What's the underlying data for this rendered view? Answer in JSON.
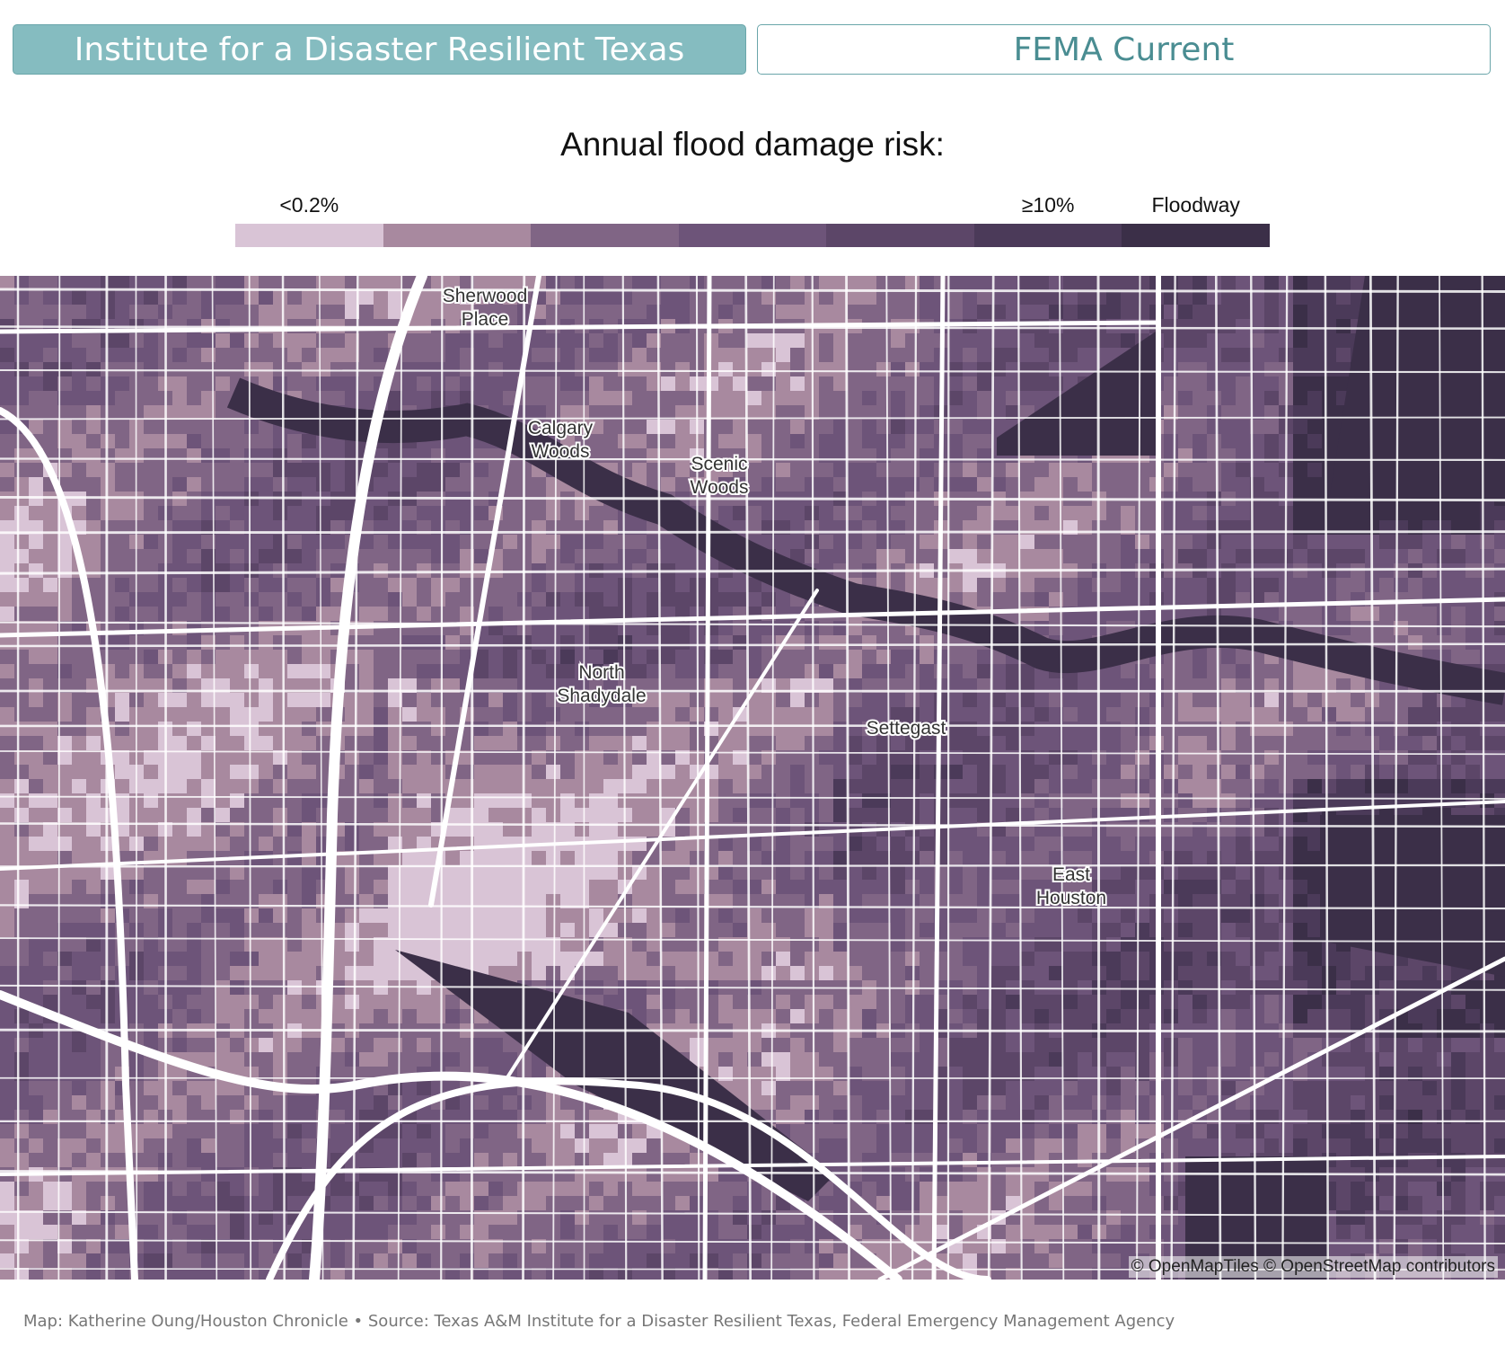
{
  "tabs": [
    {
      "label": "Institute for a Disaster Resilient Texas",
      "active": true
    },
    {
      "label": "FEMA Current",
      "active": false
    }
  ],
  "legend": {
    "title": "Annual flood damage risk:",
    "low_label": "<0.2%",
    "high_label": "≥10%",
    "floodway_label": "Floodway",
    "colors": [
      "#d9c4d6",
      "#a8899f",
      "#806585",
      "#6d5479",
      "#5c4668",
      "#4b3a59",
      "#3b2f48"
    ]
  },
  "map": {
    "places": [
      {
        "lines": [
          "Sherwood",
          "Place"
        ]
      },
      {
        "lines": [
          "Calgary",
          "Woods"
        ]
      },
      {
        "lines": [
          "Scenic",
          "Woods"
        ]
      },
      {
        "lines": [
          "North",
          "Shadydale"
        ]
      },
      {
        "lines": [
          "Settegast"
        ]
      },
      {
        "lines": [
          "East",
          "Houston"
        ]
      }
    ],
    "attribution": "© OpenMapTiles © OpenStreetMap contributors"
  },
  "credit": "Map: Katherine Oung/Houston Chronicle • Source: Texas A&M Institute for a Disaster Resilient Texas, Federal Emergency Management Agency"
}
